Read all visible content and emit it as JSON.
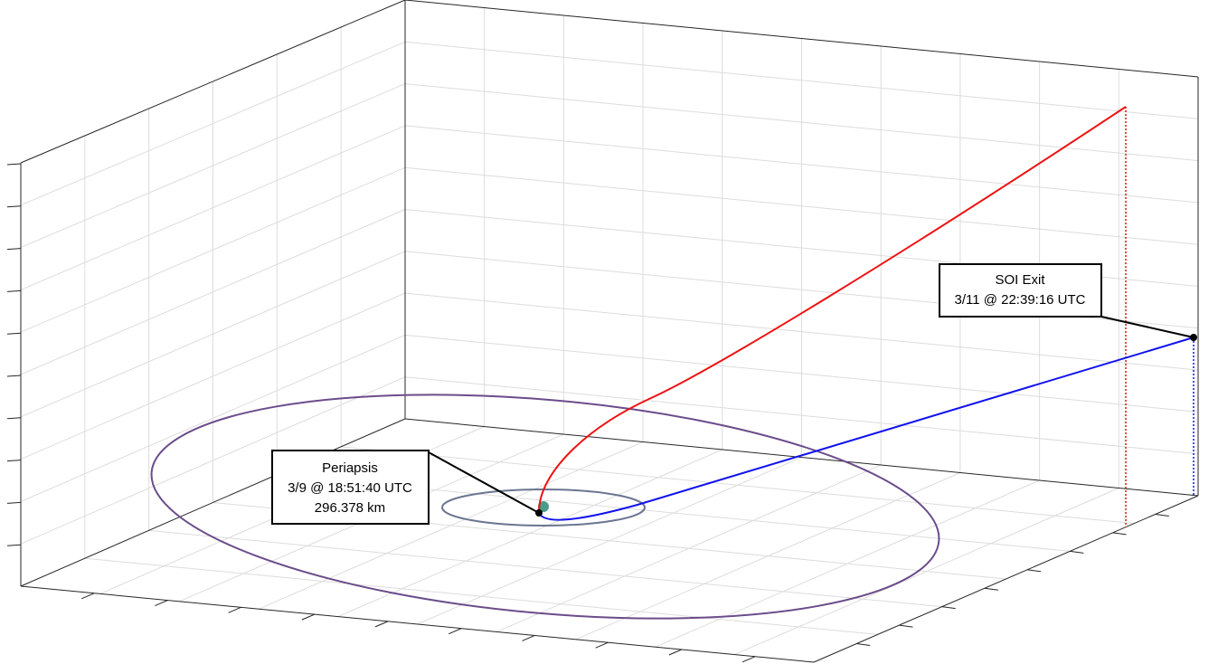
{
  "annotations": [
    {
      "lines": [
        "Periapsis",
        "3/9 @ 18:51:40 UTC",
        "296.378 km"
      ]
    },
    {
      "lines": [
        "SOI Exit",
        "3/11 @ 22:39:16 UTC"
      ]
    }
  ]
}
